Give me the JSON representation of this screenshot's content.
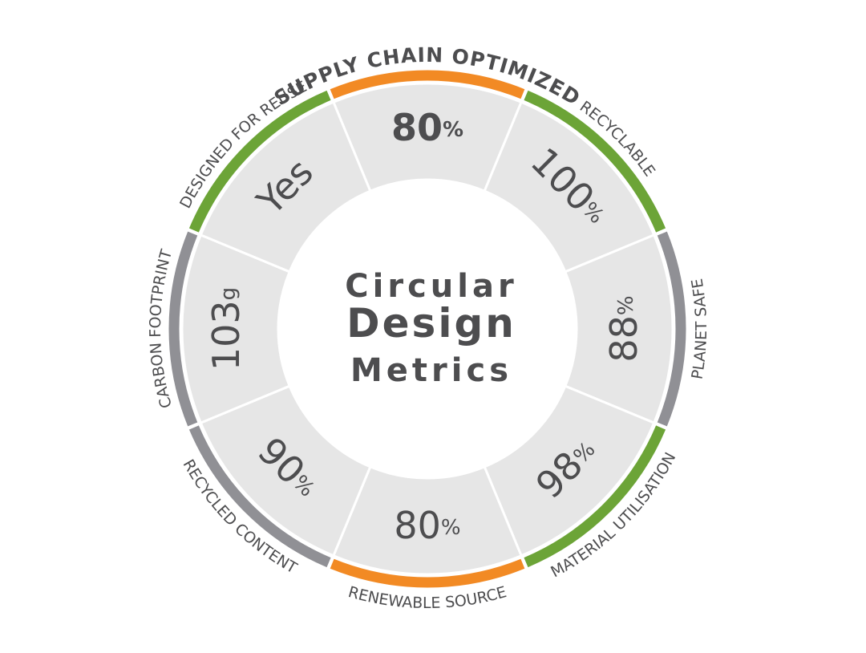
{
  "center_title": [
    "Circular",
    "Design",
    "Metrics"
  ],
  "segments": [
    {
      "label": "SUPPLY CHAIN OPTIMIZED",
      "value": "80",
      "unit": "%",
      "color": "#f28a24"
    },
    {
      "label": "RECYCLABLE",
      "value": "100",
      "unit": "%",
      "color": "#6ca437"
    },
    {
      "label": "PLANET SAFE",
      "value": "88",
      "unit": "%",
      "color": "#909095"
    },
    {
      "label": "MATERIAL UTILISATION",
      "value": "98",
      "unit": "%",
      "color": "#6ca437"
    },
    {
      "label": "RENEWABLE SOURCE",
      "value": "80",
      "unit": "%",
      "color": "#f28a24"
    },
    {
      "label": "RECYCLED CONTENT",
      "value": "90",
      "unit": "%",
      "color": "#909095"
    },
    {
      "label": "CARBON FOOTPRINT",
      "value": "103",
      "unit": "g",
      "color": "#909095"
    },
    {
      "label": "DESIGNED FOR REUSE",
      "value": "Yes",
      "color": "#6ca437"
    }
  ]
}
